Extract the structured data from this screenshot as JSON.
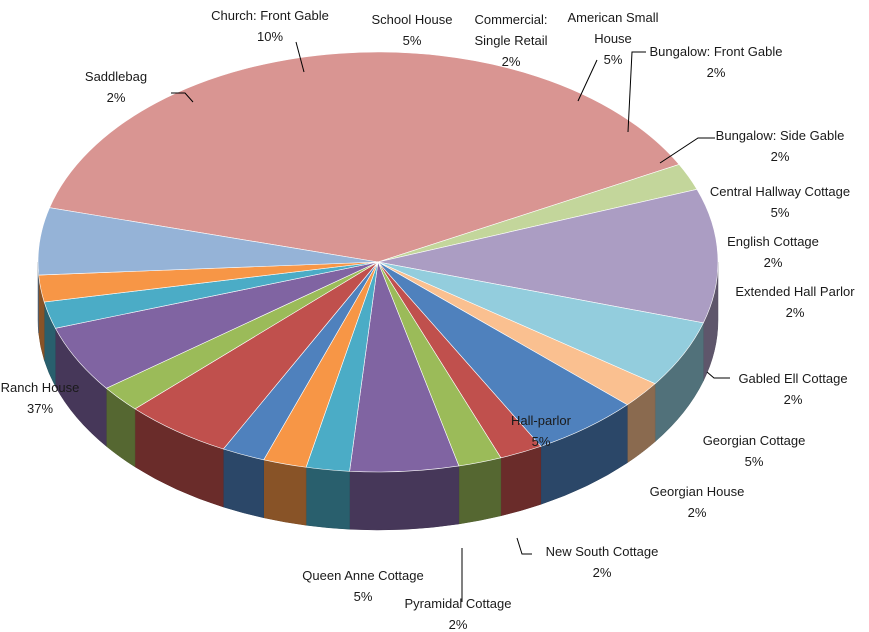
{
  "chart_data": {
    "type": "pie",
    "title": "",
    "style": "3d-exploded-pie",
    "slices": [
      {
        "label": "Ranch House",
        "pct_label": "37%",
        "value": 37,
        "color": "#d99592"
      },
      {
        "label": "Saddlebag",
        "pct_label": "2%",
        "value": 2,
        "color": "#c3d69b"
      },
      {
        "label": "Church: Front Gable",
        "pct_label": "10%",
        "value": 10,
        "color": "#ab9dc3"
      },
      {
        "label": "School House",
        "pct_label": "5%",
        "value": 5,
        "color": "#93cddd"
      },
      {
        "label": "Commercial: Single Retail",
        "pct_label": "2%",
        "value": 2,
        "color": "#fac090"
      },
      {
        "label": "American Small House",
        "pct_label": "5%",
        "value": 5,
        "color": "#4f81bd"
      },
      {
        "label": "Bungalow: Front Gable",
        "pct_label": "2%",
        "value": 2,
        "color": "#c0504d"
      },
      {
        "label": "Bungalow: Side Gable",
        "pct_label": "2%",
        "value": 2,
        "color": "#9bbb59"
      },
      {
        "label": "Central Hallway Cottage",
        "pct_label": "5%",
        "value": 5,
        "color": "#8064a2"
      },
      {
        "label": "English Cottage",
        "pct_label": "2%",
        "value": 2,
        "color": "#4bacc6"
      },
      {
        "label": "Extended Hall Parlor",
        "pct_label": "2%",
        "value": 2,
        "color": "#f79646"
      },
      {
        "label": "Gabled Ell Cottage",
        "pct_label": "2%",
        "value": 2,
        "color": "#4f81bd"
      },
      {
        "label": "Georgian Cottage",
        "pct_label": "5%",
        "value": 5,
        "color": "#c0504d"
      },
      {
        "label": "Georgian House",
        "pct_label": "2%",
        "value": 2,
        "color": "#9bbb59"
      },
      {
        "label": "Hall-parlor",
        "pct_label": "5%",
        "value": 5,
        "color": "#8064a2"
      },
      {
        "label": "New South Cottage",
        "pct_label": "2%",
        "value": 2,
        "color": "#4bacc6"
      },
      {
        "label": "Pyramidal Cottage",
        "pct_label": "2%",
        "value": 2,
        "color": "#f79646"
      },
      {
        "label": "Queen Anne Cottage",
        "pct_label": "5%",
        "value": 5,
        "color": "#95b3d7"
      }
    ]
  }
}
